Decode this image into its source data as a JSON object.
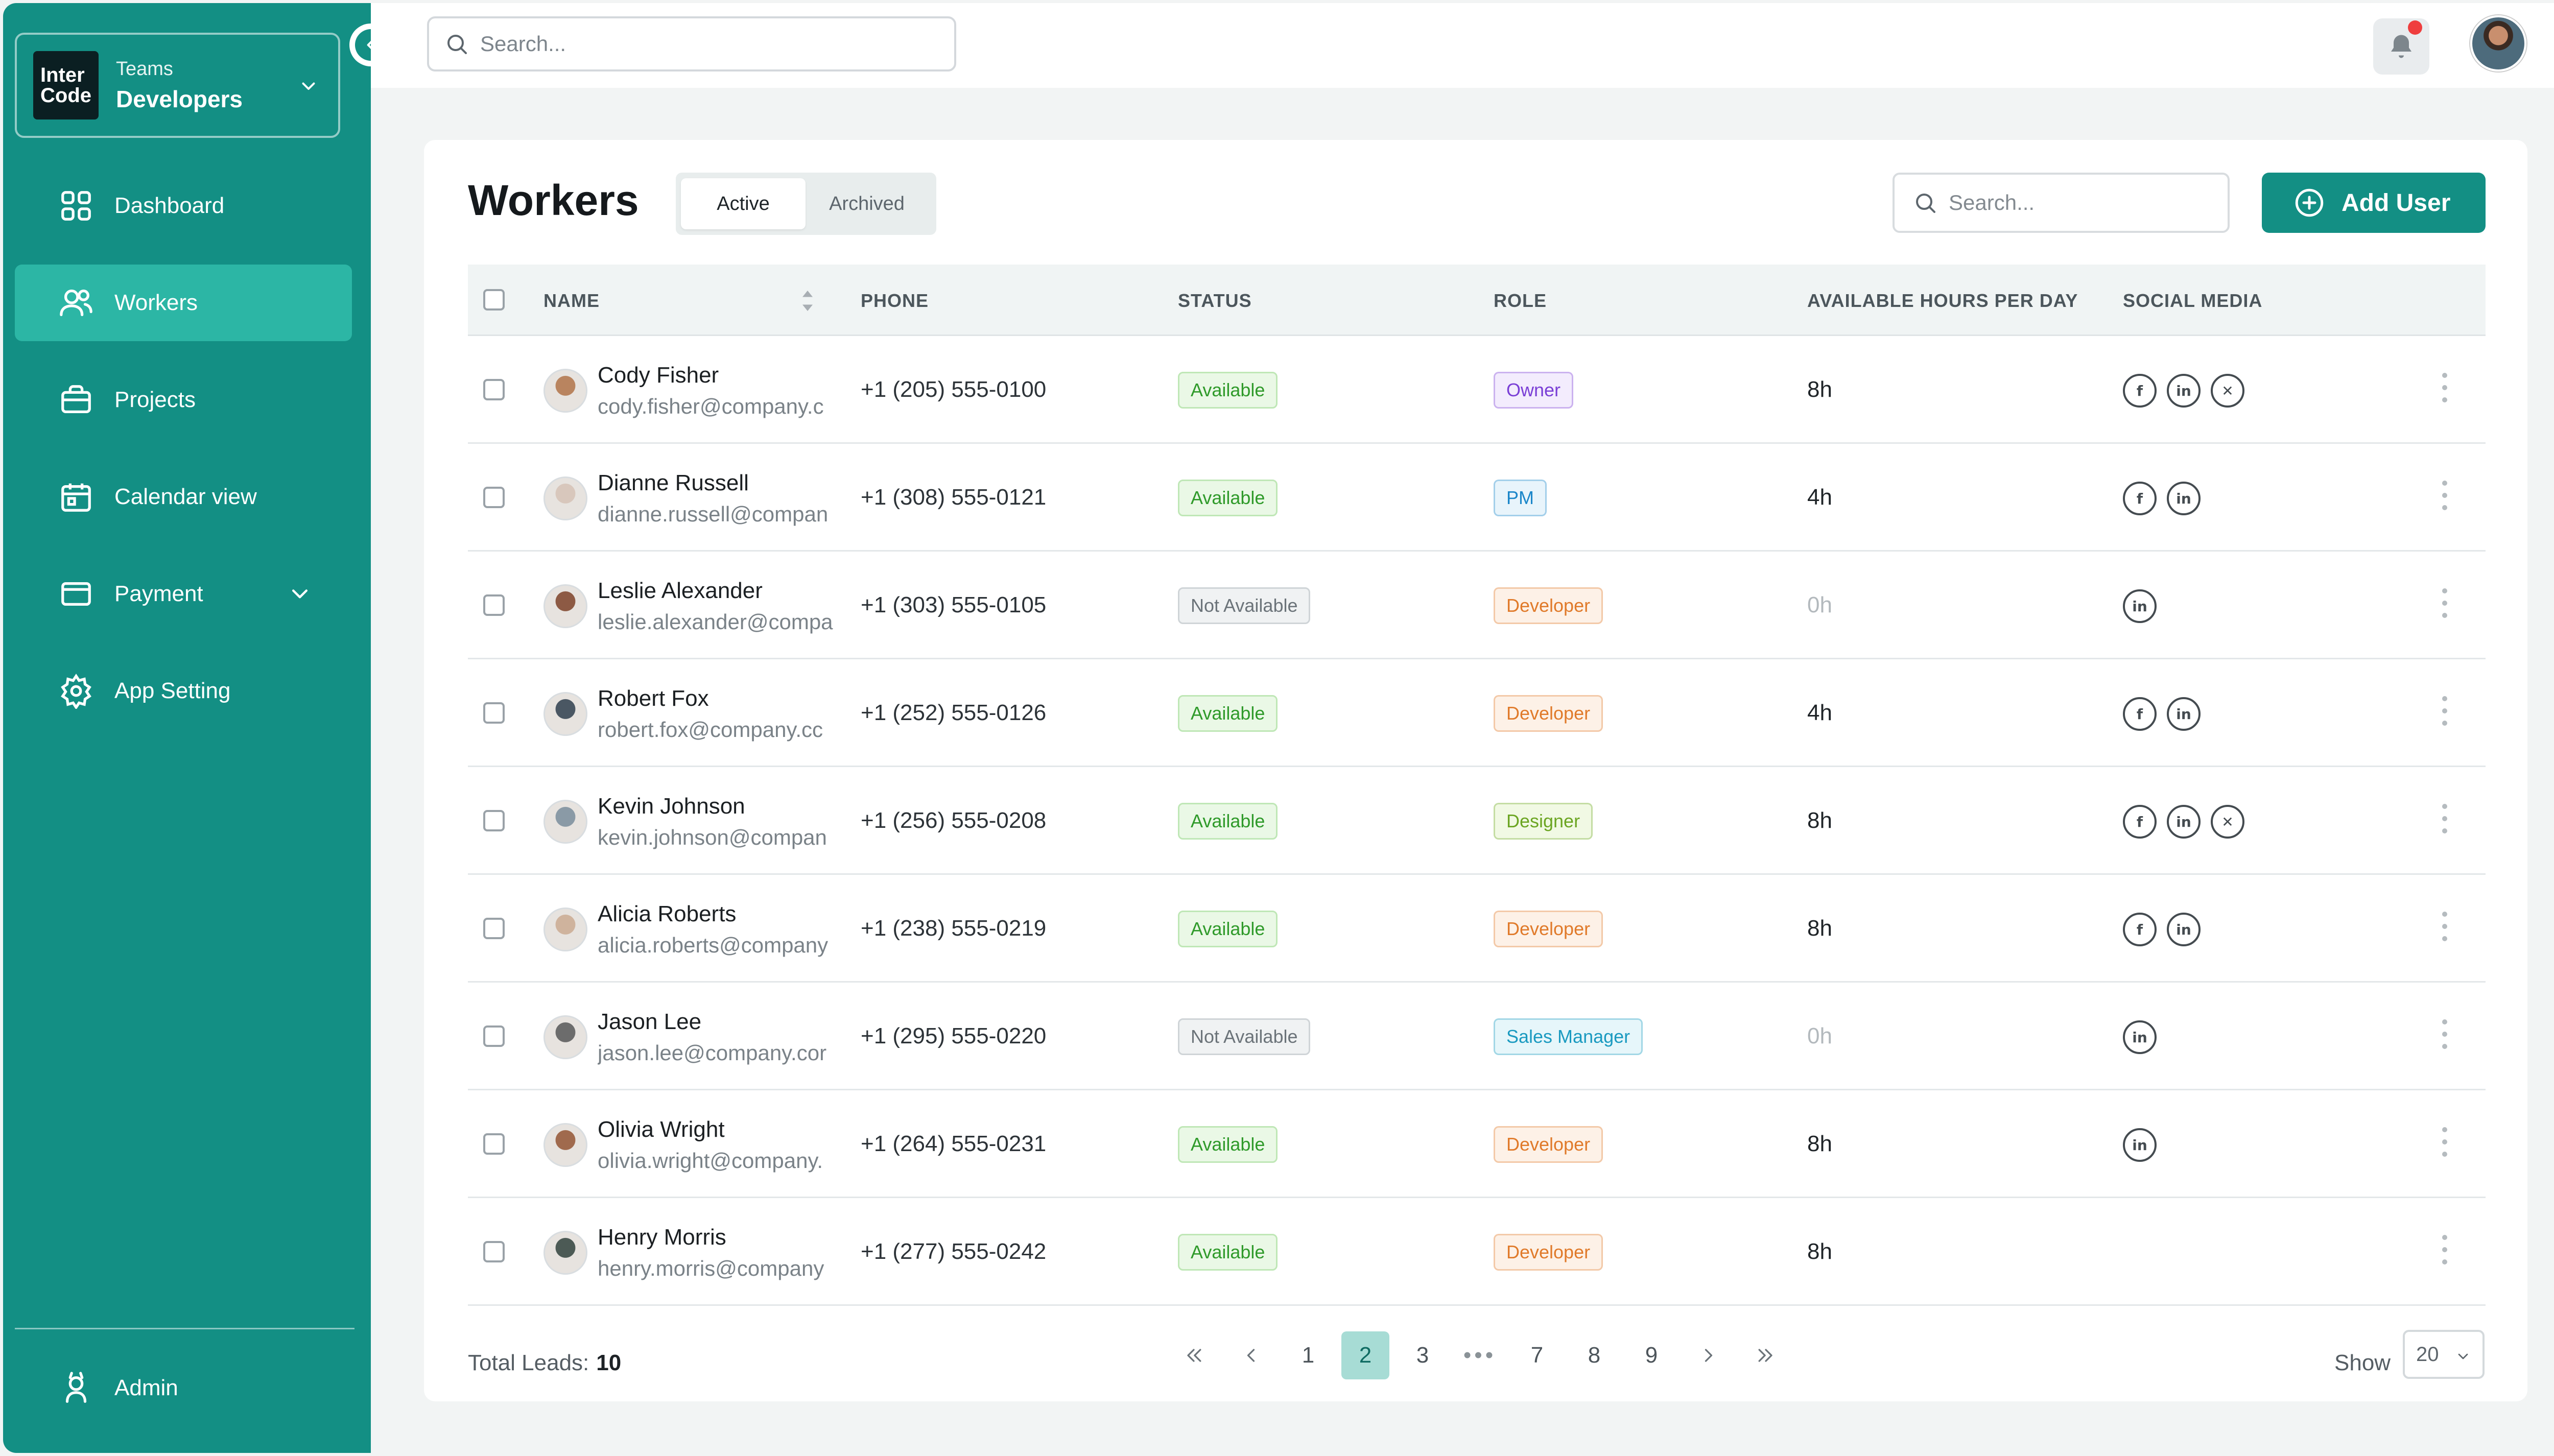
{
  "sidebar": {
    "team_label": "Teams",
    "team_name": "Developers",
    "logo_line1": "Inter",
    "logo_line2": "Code",
    "items": [
      {
        "label": "Dashboard"
      },
      {
        "label": "Workers"
      },
      {
        "label": "Projects"
      },
      {
        "label": "Calendar view"
      },
      {
        "label": "Payment"
      },
      {
        "label": "App Setting"
      }
    ],
    "admin_label": "Admin"
  },
  "topbar": {
    "search_placeholder": "Search..."
  },
  "page": {
    "title": "Workers",
    "tabs": [
      "Active",
      "Archived"
    ],
    "search_placeholder": "Search...",
    "add_button": "Add User"
  },
  "table": {
    "headers": [
      "NAME",
      "PHONE",
      "STATUS",
      "ROLE",
      "AVAILABLE HOURS PER DAY",
      "SOCIAL MEDIA"
    ],
    "rows": [
      {
        "name": "Cody Fisher",
        "email": "cody.fisher@company.c",
        "phone": "+1 (205) 555-0100",
        "status": "Available",
        "role": "Owner",
        "hours": "8h",
        "social": [
          "f",
          "in",
          "x"
        ]
      },
      {
        "name": "Dianne Russell",
        "email": "dianne.russell@compan",
        "phone": "+1 (308) 555-0121",
        "status": "Available",
        "role": "PM",
        "hours": "4h",
        "social": [
          "f",
          "in"
        ]
      },
      {
        "name": "Leslie Alexander",
        "email": "leslie.alexander@compa",
        "phone": "+1 (303) 555-0105",
        "status": "Not Available",
        "role": "Developer",
        "hours": "0h",
        "social": [
          "in"
        ]
      },
      {
        "name": "Robert Fox",
        "email": "robert.fox@company.cc",
        "phone": "+1 (252) 555-0126",
        "status": "Available",
        "role": "Developer",
        "hours": "4h",
        "social": [
          "f",
          "in"
        ]
      },
      {
        "name": "Kevin Johnson",
        "email": "kevin.johnson@compan",
        "phone": "+1 (256) 555-0208",
        "status": "Available",
        "role": "Designer",
        "hours": "8h",
        "social": [
          "f",
          "in",
          "x"
        ]
      },
      {
        "name": "Alicia Roberts",
        "email": "alicia.roberts@company",
        "phone": "+1 (238) 555-0219",
        "status": "Available",
        "role": "Developer",
        "hours": "8h",
        "social": [
          "f",
          "in"
        ]
      },
      {
        "name": "Jason Lee",
        "email": "jason.lee@company.cor",
        "phone": "+1 (295) 555-0220",
        "status": "Not Available",
        "role": "Sales Manager",
        "hours": "0h",
        "social": [
          "in"
        ]
      },
      {
        "name": "Olivia Wright",
        "email": "olivia.wright@company.",
        "phone": "+1 (264) 555-0231",
        "status": "Available",
        "role": "Developer",
        "hours": "8h",
        "social": [
          "in"
        ]
      },
      {
        "name": "Henry Morris",
        "email": "henry.morris@company",
        "phone": "+1 (277) 555-0242",
        "status": "Available",
        "role": "Developer",
        "hours": "8h",
        "social": []
      }
    ]
  },
  "footer": {
    "total_label": "Total Leads:",
    "total_value": "10",
    "pages": [
      "1",
      "2",
      "3",
      "•••",
      "7",
      "8",
      "9"
    ],
    "current_page": "2",
    "show_label": "Show",
    "show_value": "20"
  },
  "colors": {
    "sidebar": "#138f84",
    "sidebar_active": "#2cb6a5",
    "accent": "#138f84",
    "available_bg": "#eaf8e6",
    "available_fg": "#2f9a2a",
    "unavailable_fg": "#6b7379",
    "owner": "#7a3fd6",
    "pm": "#1a86c9",
    "developer": "#e07a2a",
    "designer": "#6ba522",
    "sales_manager": "#1a9ac0"
  }
}
